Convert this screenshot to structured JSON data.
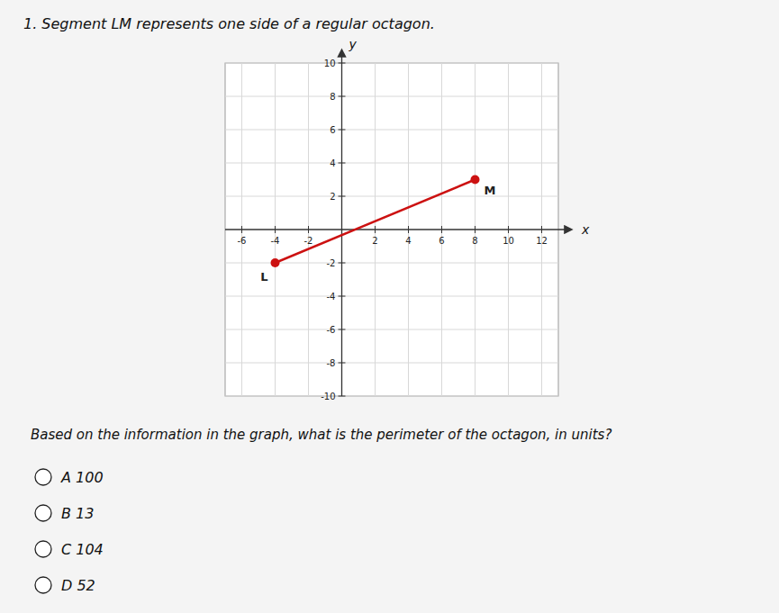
{
  "chart_data": {
    "type": "line",
    "title": "1. Segment LM represents one side of a regular octagon.",
    "xlabel": "x",
    "ylabel": "y",
    "x": [
      -4,
      8
    ],
    "values": [
      -2,
      3
    ],
    "labels": [
      "L",
      "M"
    ],
    "color": "#cc1111",
    "marker": "circle",
    "line_style": "solid",
    "xlim": [
      -7,
      13
    ],
    "ylim": [
      -10,
      10
    ],
    "xticks": [
      -6,
      -4,
      -2,
      2,
      4,
      6,
      8,
      10,
      12
    ],
    "yticks": [
      -10,
      -8,
      -6,
      -4,
      -2,
      2,
      4,
      6,
      8,
      10
    ],
    "grid": true,
    "question": "Based on the information in the graph, what is the perimeter of the octagon, in units?",
    "choices": [
      "A 100",
      "B 13",
      "C 104",
      "D 52"
    ]
  }
}
